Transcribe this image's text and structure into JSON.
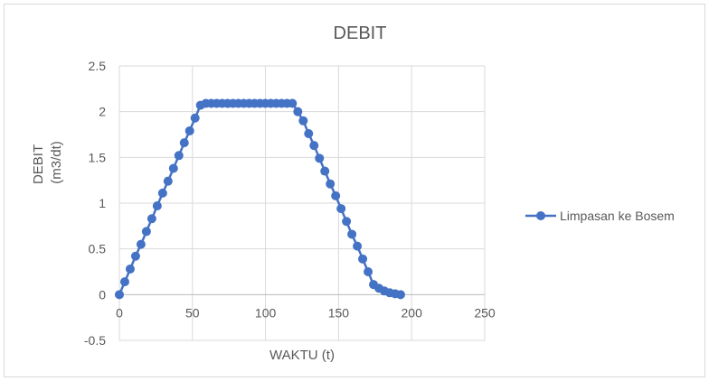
{
  "chart_data": {
    "type": "line",
    "title": "DEBIT",
    "xlabel": "WAKTU (t)",
    "ylabel_lines": [
      "DEBIT",
      "(m3/dt)"
    ],
    "xlim": [
      0,
      250
    ],
    "ylim": [
      -0.5,
      2.5
    ],
    "x_ticks": [
      0,
      50,
      100,
      150,
      200,
      250
    ],
    "y_ticks": [
      -0.5,
      0,
      0.5,
      1,
      1.5,
      2,
      2.5
    ],
    "y_tick_labels": [
      "-0.5",
      "0",
      "0.5",
      "1",
      "1.5",
      "2",
      "2.5"
    ],
    "grid": true,
    "legend_position": "right",
    "series": [
      {
        "name": "Limpasan ke Bosem",
        "color": "#4472c4",
        "marker": "circle",
        "x": [
          0,
          3.7,
          7.4,
          11.1,
          14.8,
          18.5,
          22.2,
          25.9,
          29.6,
          33.3,
          37,
          40.7,
          44.4,
          48.1,
          51.8,
          55.5,
          59.2,
          62.9,
          66.6,
          70.3,
          74,
          77.7,
          81.4,
          85.1,
          88.8,
          92.5,
          96.2,
          99.9,
          103.6,
          107.3,
          111,
          114.7,
          118.4,
          122.1,
          125.8,
          129.5,
          133.2,
          136.9,
          140.6,
          144.3,
          148,
          151.7,
          155.4,
          159.1,
          162.8,
          166.5,
          170.2,
          173.9,
          177.6,
          181.3,
          185,
          188.7,
          192.4
        ],
        "y": [
          0,
          0.14,
          0.28,
          0.42,
          0.55,
          0.69,
          0.83,
          0.97,
          1.11,
          1.24,
          1.38,
          1.52,
          1.66,
          1.79,
          1.93,
          2.07,
          2.09,
          2.09,
          2.09,
          2.09,
          2.09,
          2.09,
          2.09,
          2.09,
          2.09,
          2.09,
          2.09,
          2.09,
          2.09,
          2.09,
          2.09,
          2.09,
          2.09,
          2.0,
          1.9,
          1.76,
          1.63,
          1.49,
          1.35,
          1.21,
          1.08,
          0.94,
          0.8,
          0.66,
          0.53,
          0.39,
          0.25,
          0.11,
          0.07,
          0.04,
          0.02,
          0.01,
          0.0
        ]
      }
    ]
  }
}
